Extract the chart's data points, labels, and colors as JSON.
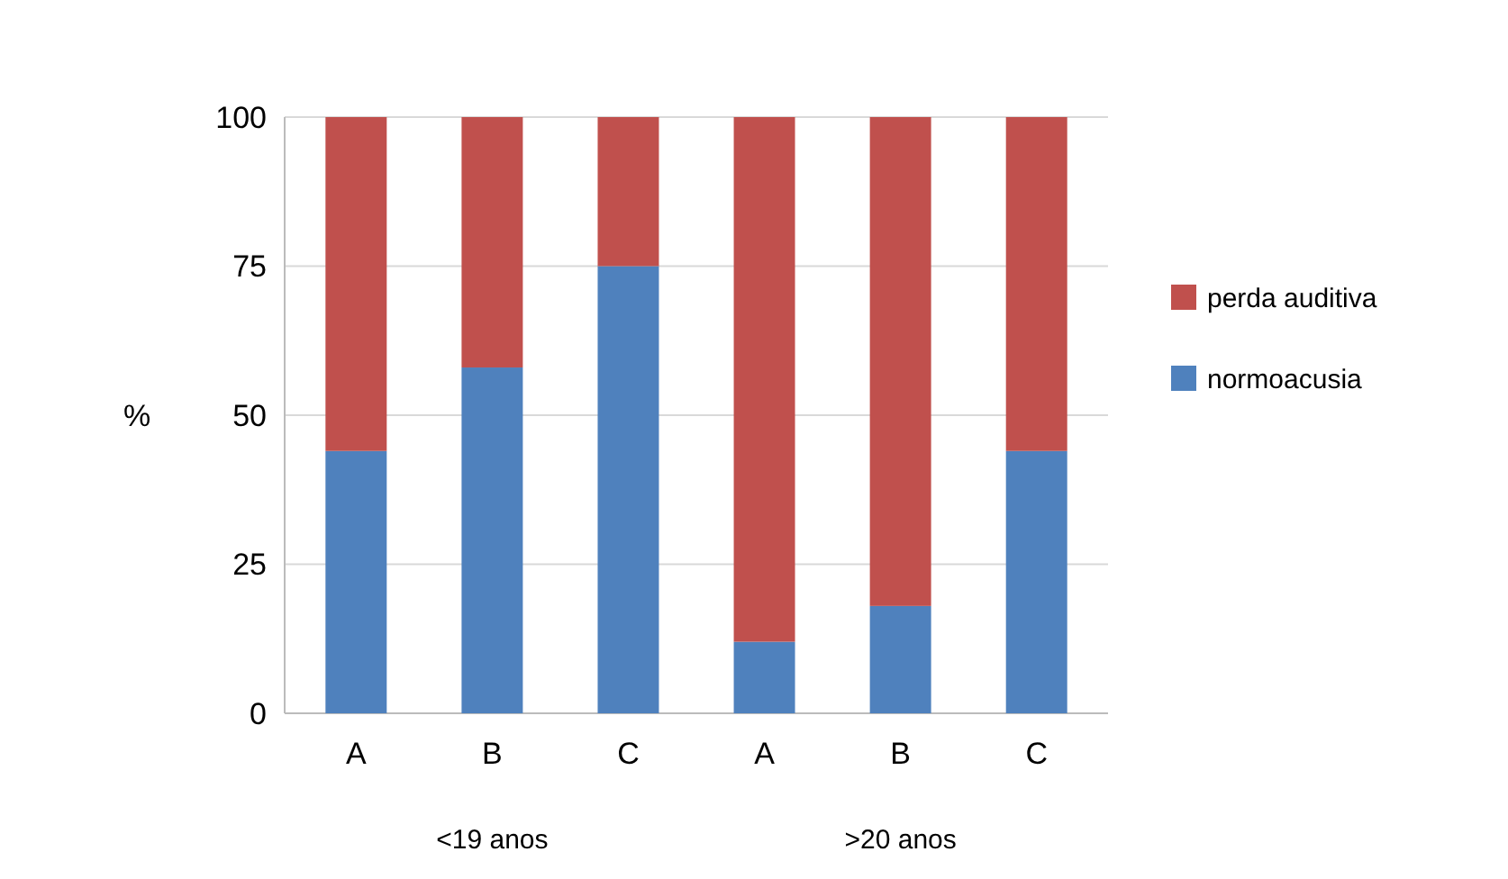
{
  "chart_data": {
    "type": "bar",
    "stacked": true,
    "ylabel": "%",
    "categories": [
      "A",
      "B",
      "C",
      "A",
      "B",
      "C"
    ],
    "series": [
      {
        "name": "normoacusia",
        "color": "#4f81bd",
        "values": [
          44,
          58,
          75,
          12,
          18,
          44
        ]
      },
      {
        "name": "perda auditiva",
        "color": "#c0504d",
        "values": [
          56,
          42,
          25,
          88,
          82,
          56
        ]
      }
    ],
    "ylim": [
      0,
      100
    ],
    "yticks": [
      0,
      25,
      50,
      75,
      100
    ],
    "grid": "y",
    "legend": "right",
    "annotations": [
      "<19 anos",
      ">20 anos"
    ]
  }
}
